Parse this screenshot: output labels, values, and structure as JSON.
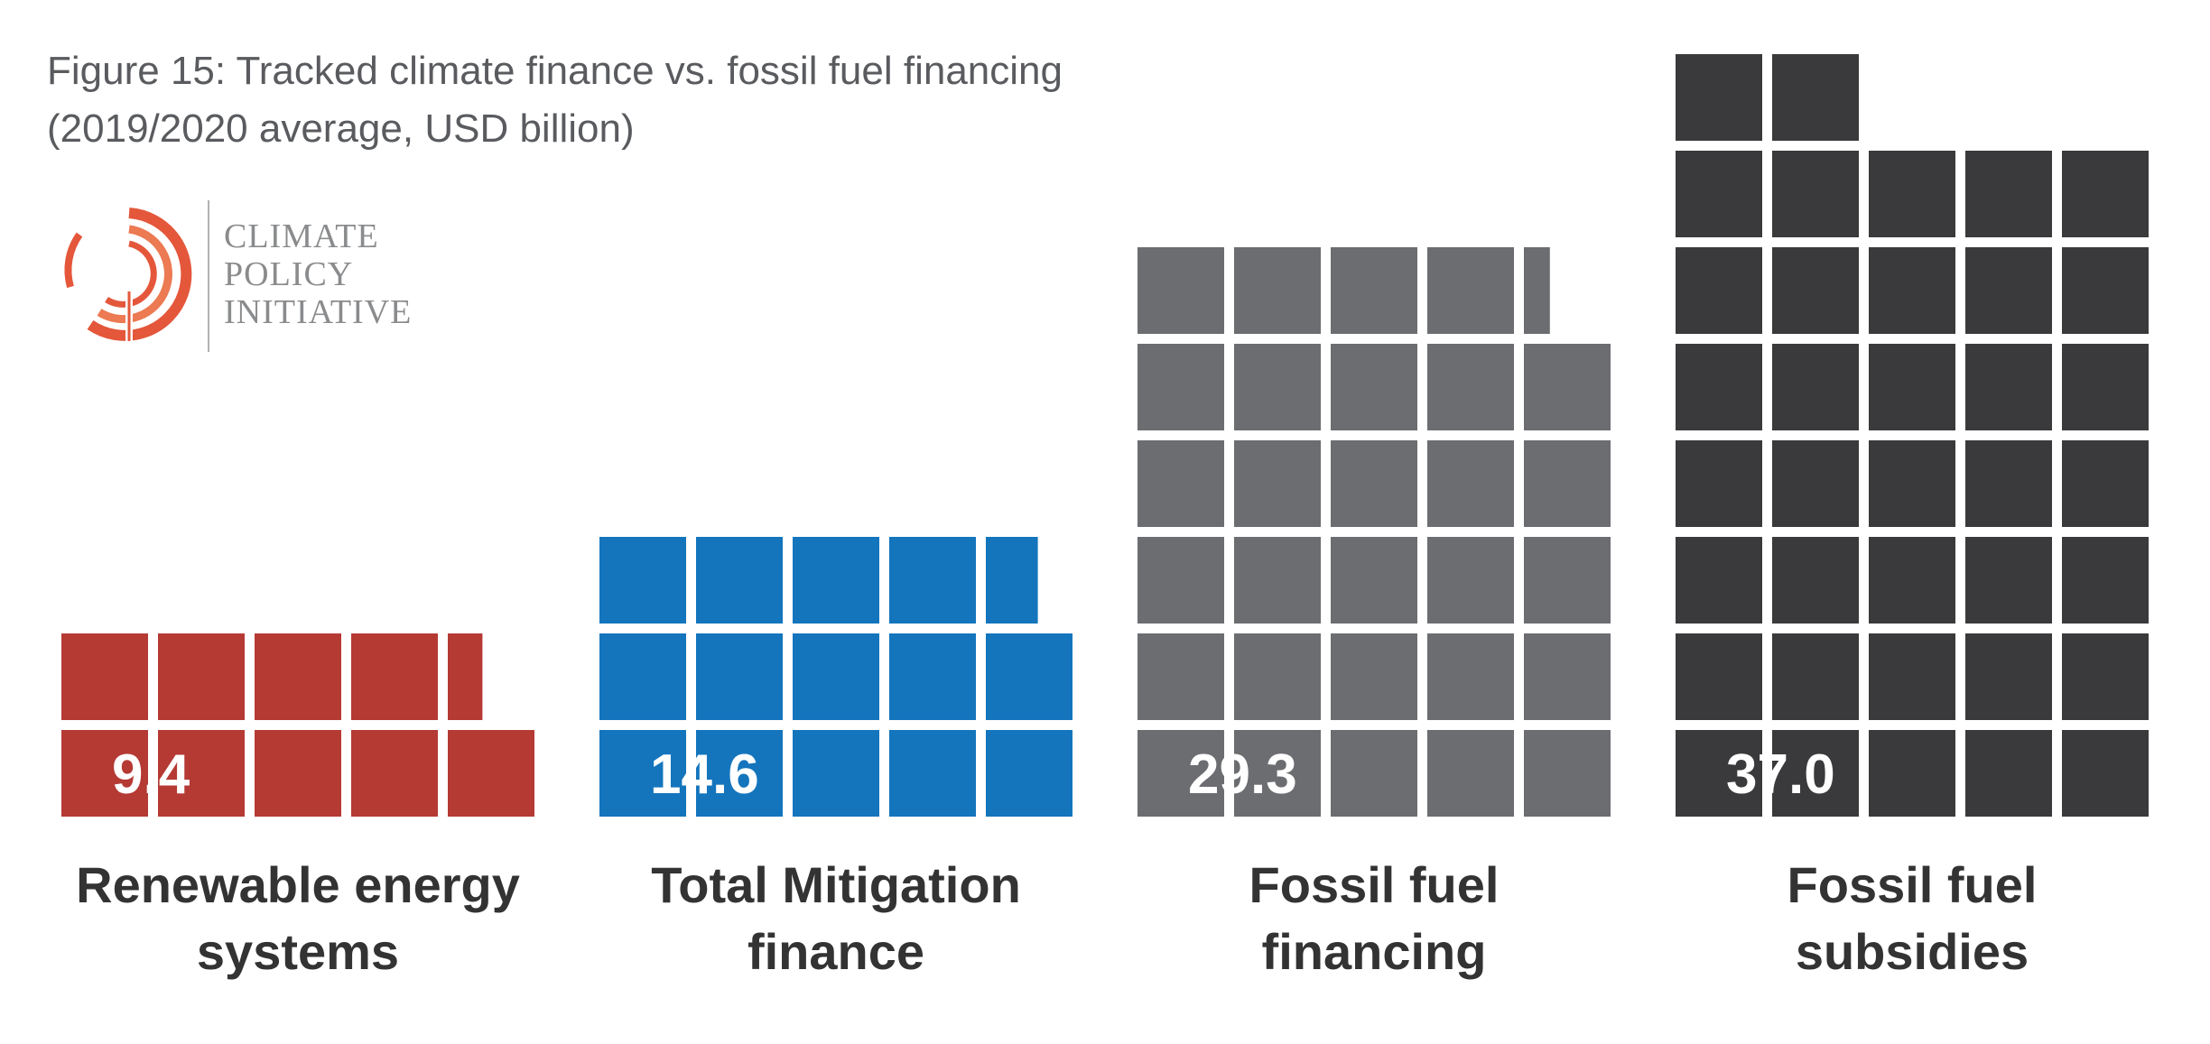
{
  "figure": {
    "title": "Figure 15: Tracked climate finance vs. fossil fuel financing",
    "subtitle": "(2019/2020 average, USD billion)"
  },
  "logo": {
    "line1": "CLIMATE",
    "line2": "POLICY",
    "line3": "INITIATIVE",
    "ring_color": "#e4573b"
  },
  "chart_data": {
    "type": "bar",
    "title": "Figure 15: Tracked climate finance vs. fossil fuel financing",
    "subtitle": "(2019/2020 average, USD billion)",
    "unit": "USD billion",
    "categories": [
      "Renewable energy systems",
      "Total Mitigation finance",
      "Fossil fuel financing",
      "Fossil fuel subsidies"
    ],
    "category_label_lines": [
      [
        "Renewable energy",
        "systems"
      ],
      [
        "Total Mitigation",
        "finance"
      ],
      [
        "Fossil fuel",
        "financing"
      ],
      [
        "Fossil fuel",
        "subsidies"
      ]
    ],
    "values": [
      9.4,
      14.6,
      29.3,
      37.0
    ],
    "value_labels": [
      "9.4",
      "14.6",
      "29.3",
      "37.0"
    ],
    "colors": [
      "#b53a34",
      "#1475bd",
      "#6c6d70",
      "#3a3a3c"
    ],
    "grid": false,
    "legend": "none"
  }
}
